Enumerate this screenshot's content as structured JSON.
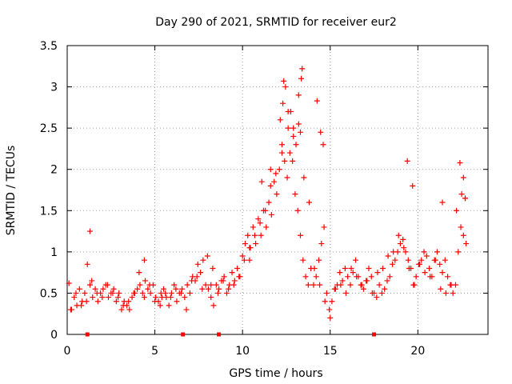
{
  "chart_data": {
    "type": "scatter",
    "title": "Day 290 of 2021, SRMTID for receiver eur2",
    "xlabel": "GPS time / hours",
    "ylabel": "SRMTID / TECUs",
    "xlim": [
      0,
      24
    ],
    "ylim": [
      0,
      3.5
    ],
    "x_ticks": [
      0,
      5,
      10,
      15,
      20
    ],
    "y_ticks": [
      0,
      0.5,
      1,
      1.5,
      2,
      2.5,
      3,
      3.5
    ],
    "x_tick_labels": [
      "0",
      "5",
      "10",
      "15",
      "20"
    ],
    "y_tick_labels": [
      "0",
      "0.5",
      "1",
      "1.5",
      "2",
      "2.5",
      "3",
      "3.5"
    ],
    "grid": true,
    "color": "#ff0000",
    "marker": "+",
    "series": [
      {
        "name": "SRMTID",
        "x": [
          0.1,
          0.25,
          0.4,
          0.55,
          0.7,
          0.85,
          1.0,
          1.15,
          1.3,
          1.45,
          1.6,
          1.75,
          1.9,
          2.05,
          2.2,
          2.35,
          2.5,
          2.65,
          2.8,
          2.95,
          3.1,
          3.25,
          3.4,
          3.55,
          3.7,
          3.85,
          4.0,
          4.15,
          4.3,
          4.45,
          4.6,
          4.75,
          4.9,
          5.05,
          5.2,
          5.35,
          5.5,
          5.65,
          5.8,
          5.95,
          6.1,
          6.25,
          6.4,
          6.55,
          6.7,
          6.85,
          7.0,
          7.15,
          7.3,
          7.45,
          7.6,
          7.75,
          7.9,
          8.05,
          8.2,
          8.35,
          8.5,
          8.65,
          8.8,
          8.95,
          9.1,
          9.25,
          9.4,
          9.55,
          9.7,
          9.85,
          10.0,
          10.15,
          10.3,
          10.45,
          10.6,
          10.75,
          10.9,
          11.05,
          11.2,
          11.35,
          11.5,
          11.65,
          11.8,
          11.95,
          12.1,
          12.25,
          12.4,
          12.55,
          12.7,
          12.85,
          13.0,
          13.15,
          13.3,
          13.45,
          13.6,
          13.75,
          13.9,
          14.05,
          14.2,
          14.35,
          14.5,
          14.65,
          14.8,
          14.95,
          15.1,
          15.25,
          15.4,
          15.55,
          15.7,
          15.85,
          16.0,
          16.15,
          16.3,
          16.45,
          16.6,
          16.75,
          16.9,
          17.05,
          17.2,
          17.35,
          17.5,
          17.65,
          17.8,
          17.95,
          18.1,
          18.25,
          18.4,
          18.55,
          18.7,
          18.85,
          19.0,
          19.15,
          19.3,
          19.45,
          19.6,
          19.75,
          19.9,
          20.05,
          20.2,
          20.35,
          20.5,
          20.65,
          20.8,
          20.95,
          21.1,
          21.25,
          21.4,
          21.55,
          21.7,
          21.85,
          22.0,
          22.15,
          22.3,
          22.45,
          22.6,
          22.75,
          0.2,
          0.5,
          0.8,
          1.1,
          1.4,
          1.7,
          2.0,
          2.3,
          2.6,
          2.9,
          3.2,
          3.5,
          3.8,
          4.1,
          4.4,
          4.7,
          5.0,
          5.3,
          5.6,
          5.9,
          6.2,
          6.5,
          6.8,
          7.1,
          7.4,
          7.7,
          8.0,
          8.3,
          8.6,
          8.9,
          9.2,
          9.5,
          9.8,
          10.1,
          10.4,
          10.7,
          11.0,
          11.3,
          11.6,
          11.9,
          12.15,
          12.3,
          12.45,
          12.6,
          12.75,
          12.9,
          13.05,
          13.2,
          13.35,
          13.5,
          13.8,
          14.1,
          14.4,
          14.7,
          15.0,
          15.3,
          15.6,
          15.9,
          16.2,
          16.5,
          16.8,
          17.1,
          17.4,
          17.7,
          18.0,
          18.3,
          18.6,
          18.9,
          19.2,
          19.5,
          19.8,
          20.1,
          20.4,
          20.7,
          21.0,
          21.3,
          21.6,
          21.9,
          22.2,
          22.5,
          22.7,
          1.3,
          4.4,
          5.4,
          8.2,
          10.4,
          11.1,
          11.6,
          12.25,
          12.35,
          12.6,
          12.9,
          13.2,
          13.3,
          13.4,
          14.25,
          14.45,
          14.6,
          19.4,
          19.7,
          21.4,
          22.4,
          22.6,
          22.7
        ],
        "y": [
          0.62,
          0.3,
          0.45,
          0.35,
          0.55,
          0.4,
          0.5,
          0.85,
          0.6,
          0.45,
          0.55,
          0.4,
          0.5,
          0.55,
          0.6,
          0.45,
          0.5,
          0.55,
          0.4,
          0.5,
          0.3,
          0.4,
          0.35,
          0.3,
          0.45,
          0.5,
          0.55,
          0.6,
          0.5,
          0.65,
          0.55,
          0.5,
          0.6,
          0.45,
          0.4,
          0.5,
          0.55,
          0.45,
          0.35,
          0.5,
          0.6,
          0.4,
          0.5,
          0.55,
          0.45,
          0.6,
          0.5,
          0.7,
          0.65,
          0.85,
          0.75,
          0.9,
          0.6,
          0.55,
          0.45,
          0.35,
          0.6,
          0.55,
          0.65,
          0.7,
          0.5,
          0.6,
          0.75,
          0.65,
          0.8,
          0.7,
          0.95,
          1.1,
          1.2,
          1.05,
          1.3,
          1.1,
          1.4,
          1.2,
          1.5,
          1.3,
          1.6,
          1.45,
          1.85,
          1.7,
          2.0,
          2.3,
          2.1,
          1.9,
          2.2,
          2.1,
          1.7,
          1.5,
          1.2,
          0.9,
          0.7,
          0.6,
          0.8,
          0.6,
          0.7,
          0.9,
          1.1,
          1.3,
          0.5,
          0.3,
          0.4,
          0.55,
          0.6,
          0.75,
          0.65,
          0.8,
          0.7,
          0.6,
          0.75,
          0.9,
          0.7,
          0.6,
          0.55,
          0.65,
          0.8,
          0.7,
          0.5,
          0.45,
          0.6,
          0.5,
          0.55,
          0.65,
          0.7,
          0.85,
          0.9,
          1.0,
          1.1,
          1.15,
          1.0,
          0.9,
          0.8,
          0.6,
          0.7,
          0.85,
          0.9,
          1.0,
          0.95,
          0.8,
          0.7,
          0.9,
          1.0,
          0.85,
          0.75,
          0.9,
          0.7,
          0.6,
          0.5,
          0.6,
          1.0,
          1.3,
          1.2,
          1.1,
          0.3,
          0.5,
          0.35,
          0.4,
          0.65,
          0.5,
          0.45,
          0.6,
          0.5,
          0.45,
          0.35,
          0.4,
          0.5,
          0.75,
          0.45,
          0.6,
          0.4,
          0.35,
          0.5,
          0.45,
          0.55,
          0.5,
          0.3,
          0.65,
          0.7,
          0.55,
          0.95,
          0.8,
          0.5,
          0.65,
          0.55,
          0.6,
          0.7,
          0.9,
          1.05,
          1.2,
          1.35,
          1.5,
          1.8,
          1.95,
          2.6,
          2.8,
          3.0,
          2.5,
          2.7,
          2.4,
          2.3,
          2.9,
          3.1,
          1.9,
          1.6,
          0.8,
          0.6,
          0.4,
          0.2,
          0.55,
          0.6,
          0.5,
          0.8,
          0.7,
          0.6,
          0.65,
          0.5,
          0.75,
          0.8,
          0.95,
          1.0,
          1.2,
          1.05,
          0.8,
          0.6,
          0.85,
          0.75,
          0.7,
          0.9,
          0.55,
          0.5,
          0.6,
          1.5,
          1.7,
          1.65,
          1.25,
          0.9,
          0.45,
          0.6,
          0.9,
          1.85,
          2.0,
          2.2,
          3.07,
          2.7,
          2.5,
          2.55,
          2.45,
          3.22,
          2.83,
          2.45,
          2.3,
          2.1,
          1.8,
          1.6,
          2.08,
          1.9,
          1.65
        ]
      }
    ],
    "x_axis_markers": [
      1.15,
      6.6,
      8.65,
      17.5
    ]
  }
}
